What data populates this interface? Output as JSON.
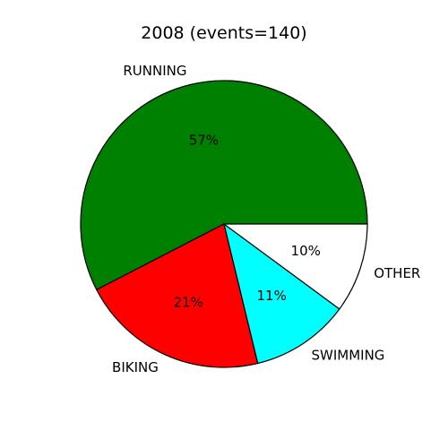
{
  "chart_data": {
    "type": "pie",
    "title": "2008 (events=140)",
    "labels": [
      "RUNNING",
      "BIKING",
      "SWIMMING",
      "OTHER"
    ],
    "values": [
      57,
      21,
      11,
      10
    ],
    "percent_labels": [
      "57%",
      "21%",
      "11%",
      "10%"
    ],
    "colors": [
      "#008000",
      "#ff0000",
      "#00ffff",
      "#ffffff"
    ],
    "start_angle_deg": 0,
    "direction": "counterclockwise",
    "legend": "none"
  }
}
